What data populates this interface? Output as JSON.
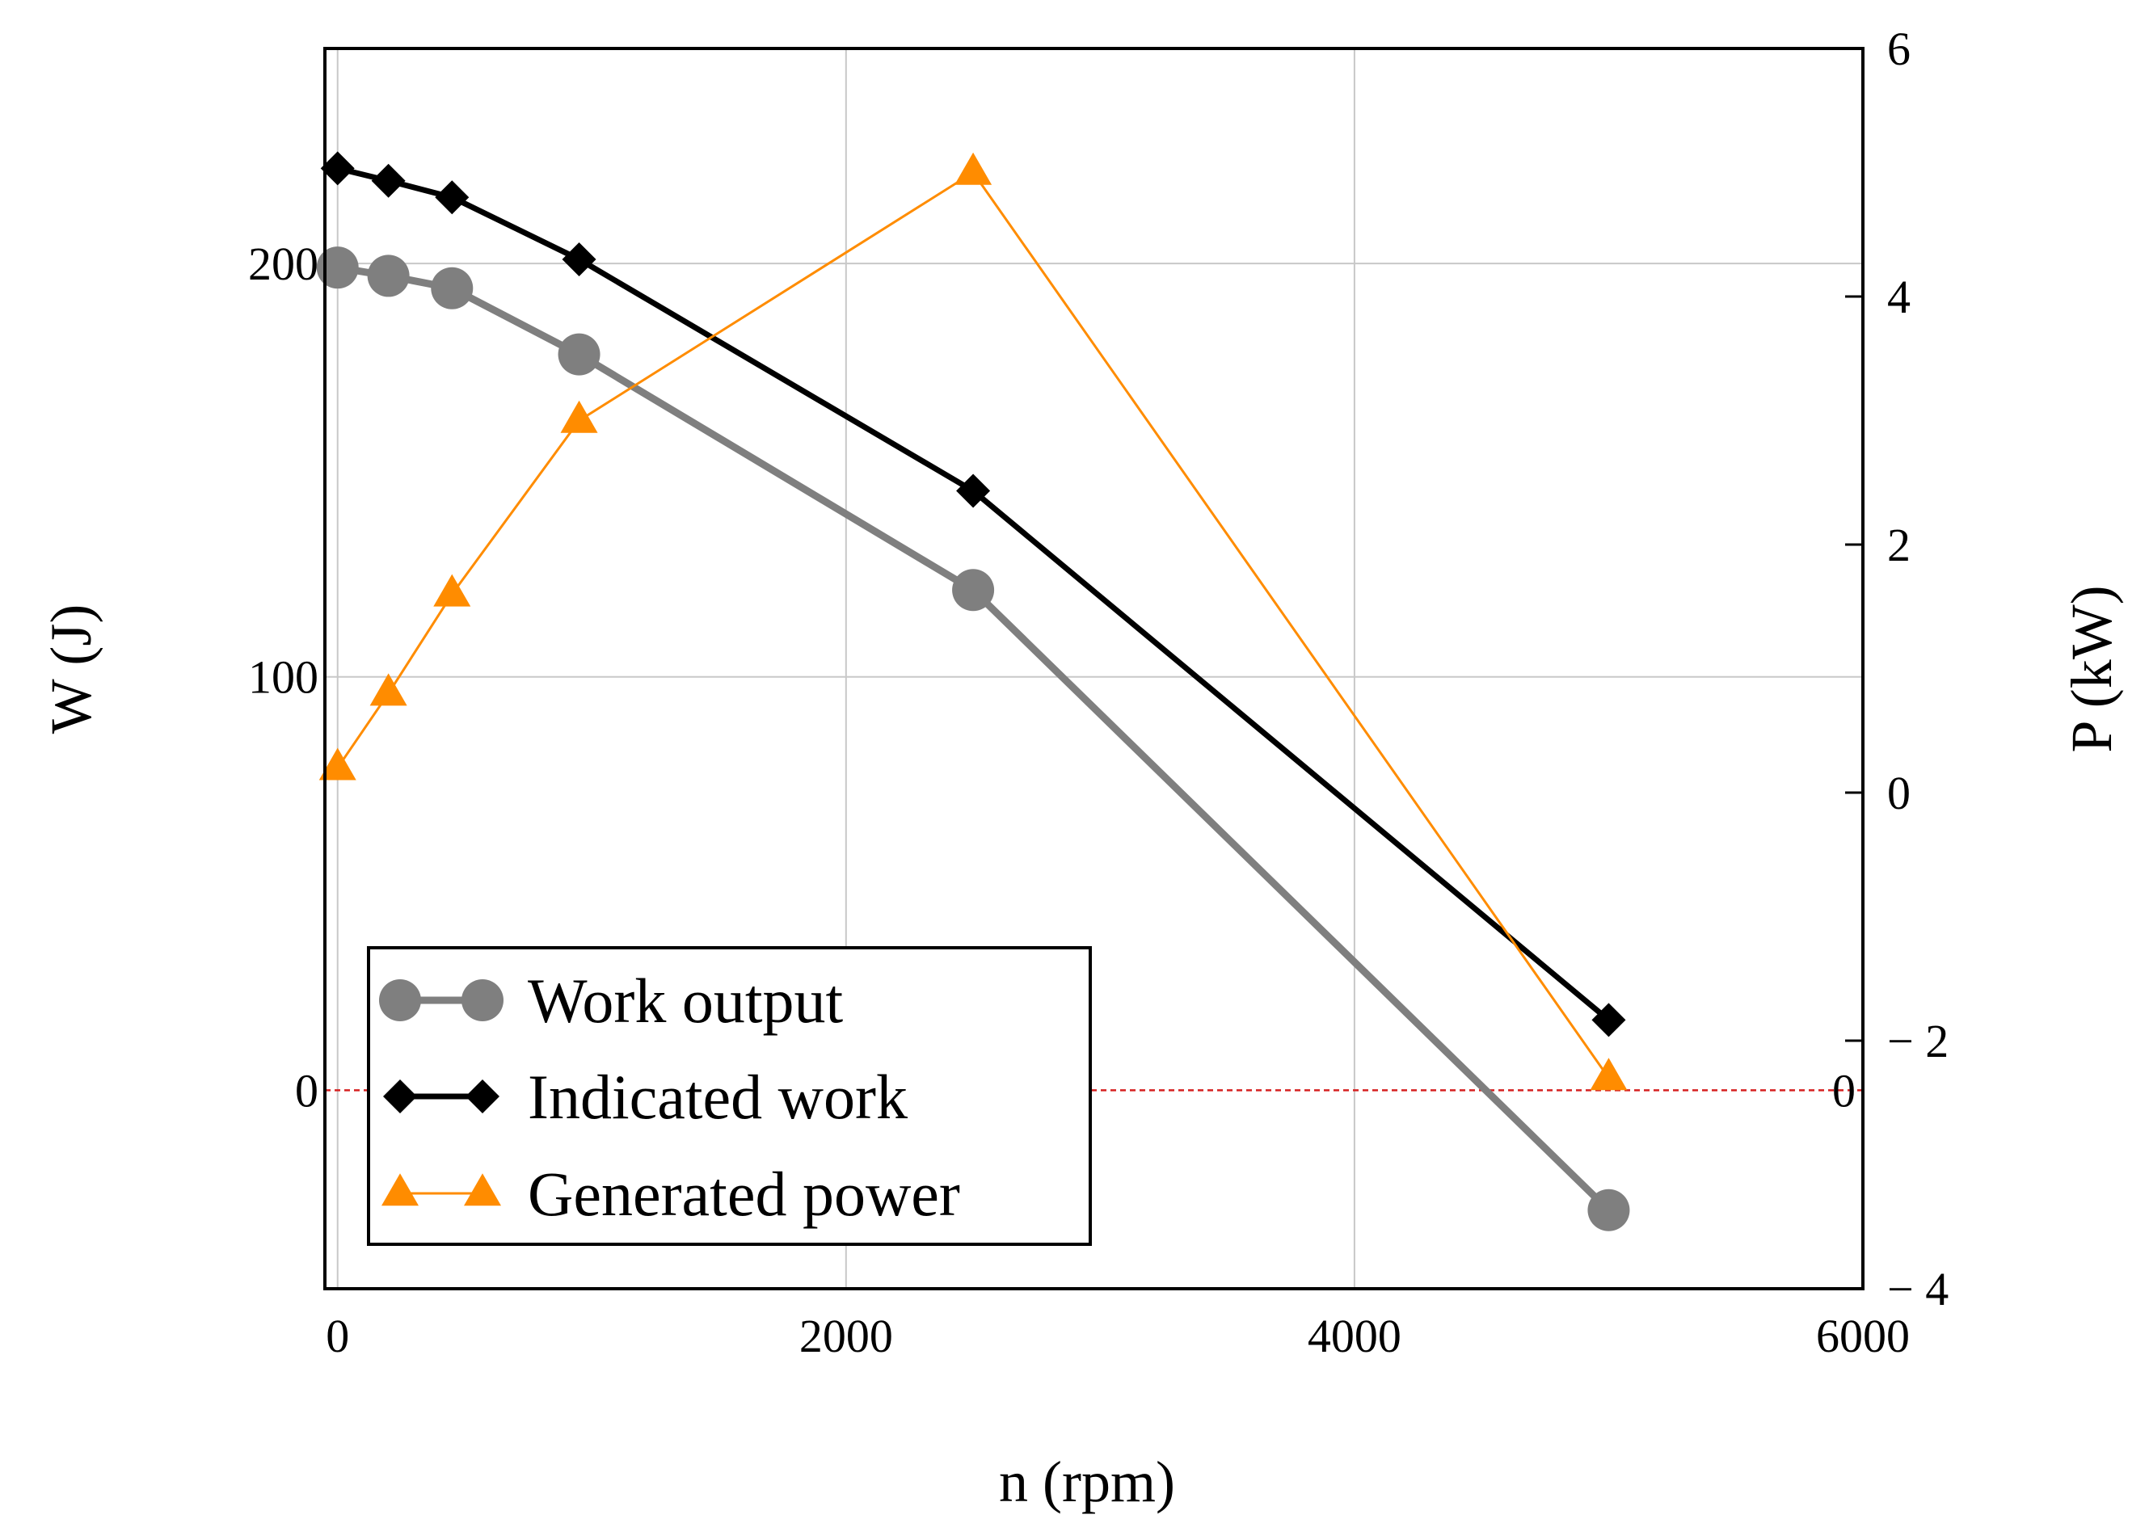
{
  "chart_data": {
    "type": "line",
    "xlabel": "n (rpm)",
    "ylabel": "W (J)",
    "y2label": "P (kW)",
    "xlim": [
      -50,
      6000
    ],
    "ylim": [
      -48,
      252
    ],
    "y2lim": [
      -4,
      6
    ],
    "xticks": [
      0,
      2000,
      4000,
      6000
    ],
    "yticks": [
      0,
      100,
      200
    ],
    "y2ticks": [
      -4,
      -2,
      0,
      2,
      4,
      6
    ],
    "y2tick_labels": [
      "− 4",
      "− 2",
      "0",
      "2",
      "4",
      "6"
    ],
    "grid": true,
    "zero_reference": {
      "W": 0,
      "P_label": "0",
      "color": "#d62020"
    },
    "x": [
      0,
      200,
      450,
      950,
      2500,
      5000
    ],
    "series": [
      {
        "name": "Work output",
        "axis": "left",
        "marker": "circle",
        "color": "#7f7f7f",
        "values": [
          199,
          197,
          194,
          178,
          121,
          -29
        ]
      },
      {
        "name": "Indicated work",
        "axis": "left",
        "marker": "diamond",
        "color": "#000000",
        "values": [
          223,
          220,
          216,
          201,
          145,
          17
        ]
      },
      {
        "name": "Generated power",
        "axis": "right",
        "marker": "triangle",
        "color": "#ff8c00",
        "values": [
          0.2,
          0.8,
          1.6,
          3.0,
          5.0,
          -2.3
        ]
      }
    ],
    "legend": {
      "position": "bottom-left",
      "labels": [
        "Work output",
        "Indicated work",
        "Generated power"
      ]
    }
  }
}
